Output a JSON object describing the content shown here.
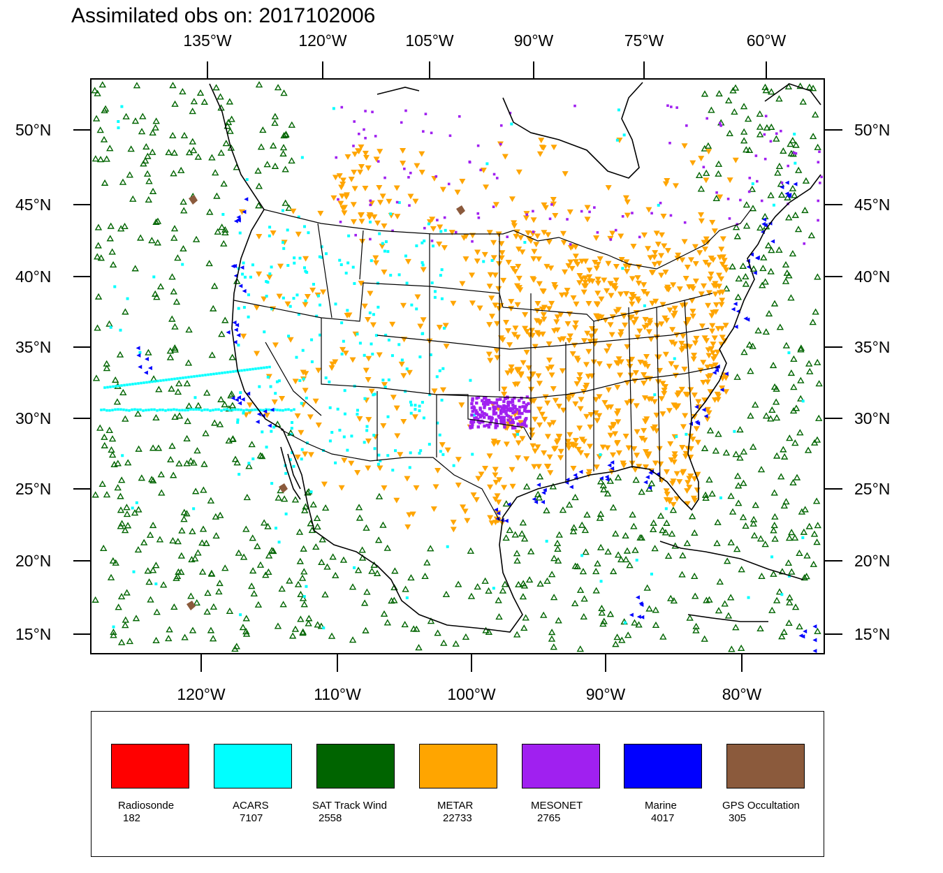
{
  "title": "Assimilated obs on: 2017102006",
  "top_axis_labels": [
    "135°W",
    "120°W",
    "105°W",
    "90°W",
    "75°W",
    "60°W"
  ],
  "bottom_axis_labels": [
    "120°W",
    "110°W",
    "100°W",
    "90°W",
    "80°W"
  ],
  "lat_labels": [
    "50°N",
    "45°N",
    "40°N",
    "35°N",
    "30°N",
    "25°N",
    "20°N",
    "15°N"
  ],
  "map_extent": {
    "lon_min": -128,
    "lon_max": -74,
    "lat_min": 13.7,
    "lat_max": 53.5
  },
  "legend": [
    {
      "name": "Radiosonde",
      "count": "182",
      "color": "#ff0000"
    },
    {
      "name": "ACARS",
      "count": "7107",
      "color": "#00ffff"
    },
    {
      "name": "SAT Track Wind",
      "count": "2558",
      "color": "#006400"
    },
    {
      "name": "METAR",
      "count": "22733",
      "color": "#ffa500"
    },
    {
      "name": "MESONET",
      "count": "2765",
      "color": "#a020f0"
    },
    {
      "name": "Marine",
      "count": "4017",
      "color": "#0000ff"
    },
    {
      "name": "GPS Occultation",
      "count": "305",
      "color": "#8b5a3c"
    }
  ]
}
